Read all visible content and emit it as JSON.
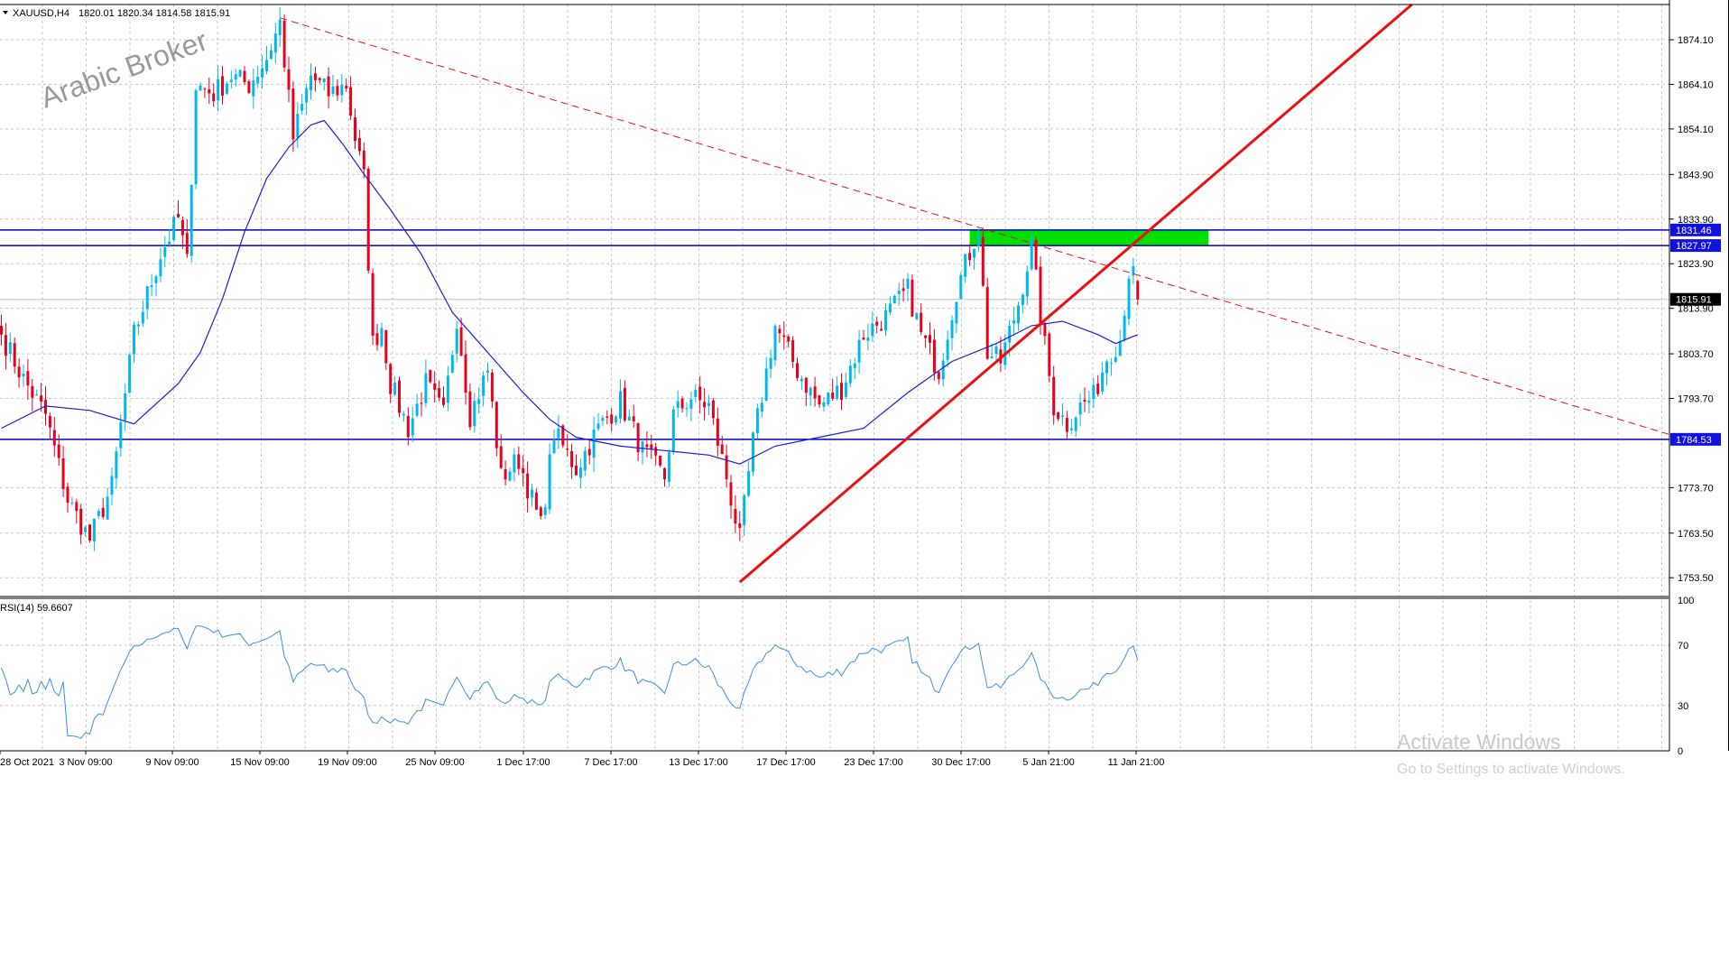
{
  "header": {
    "symbol": "XAUUSD,H4",
    "ohlc": "1820.01 1820.34 1814.58 1815.91",
    "menu_icon": "triangle-down-icon"
  },
  "watermark": {
    "text": "Arabic Broker"
  },
  "activation": {
    "title": "Activate Windows",
    "subtitle": "Go to Settings to activate Windows."
  },
  "colors": {
    "bull": "#00b8f0",
    "bear": "#e8001c",
    "ma": "#1c1cdc",
    "hline": "#0000c8",
    "trend": "#e81010",
    "zone": "#00e000",
    "rsi": "#3a8ee6",
    "grid": "#c8c8c8",
    "price_tag_bg": "#000000",
    "level_tag_bg": "#1010e0"
  },
  "chart_data": [
    {
      "type": "candlestick",
      "title": "XAUUSD,H4",
      "x_tick_labels": [
        "28 Oct 2021",
        "3 Nov 09:00",
        "9 Nov 09:00",
        "15 Nov 09:00",
        "19 Nov 09:00",
        "25 Nov 09:00",
        "1 Dec 17:00",
        "7 Dec 17:00",
        "13 Dec 17:00",
        "17 Dec 17:00",
        "23 Dec 17:00",
        "30 Dec 17:00",
        "5 Jan 21:00",
        "11 Jan 21:00"
      ],
      "y_tick_labels": [
        "1874.10",
        "1864.10",
        "1854.10",
        "1843.90",
        "1833.90",
        "1823.90",
        "1813.90",
        "1803.70",
        "1793.70",
        "1773.70",
        "1763.50",
        "1753.50"
      ],
      "ylim": [
        1749.5,
        1882.0
      ],
      "grid": true,
      "current_price": "1815.91",
      "horizontal_levels": [
        "1831.46",
        "1827.97",
        "1784.53"
      ],
      "anchor_points": [
        {
          "bar": 0,
          "close": 1808
        },
        {
          "bar": 5,
          "close": 1798
        },
        {
          "bar": 10,
          "close": 1790
        },
        {
          "bar": 15,
          "close": 1771
        },
        {
          "bar": 20,
          "close": 1762
        },
        {
          "bar": 25,
          "close": 1774
        },
        {
          "bar": 30,
          "close": 1808
        },
        {
          "bar": 36,
          "close": 1826
        },
        {
          "bar": 40,
          "close": 1834
        },
        {
          "bar": 42,
          "close": 1824
        },
        {
          "bar": 44,
          "close": 1864
        },
        {
          "bar": 48,
          "close": 1862
        },
        {
          "bar": 52,
          "close": 1866
        },
        {
          "bar": 56,
          "close": 1864
        },
        {
          "bar": 60,
          "close": 1870
        },
        {
          "bar": 63,
          "close": 1878
        },
        {
          "bar": 66,
          "close": 1852
        },
        {
          "bar": 70,
          "close": 1866
        },
        {
          "bar": 74,
          "close": 1862
        },
        {
          "bar": 78,
          "close": 1864
        },
        {
          "bar": 80,
          "close": 1852
        },
        {
          "bar": 82,
          "close": 1843
        },
        {
          "bar": 84,
          "close": 1806
        },
        {
          "bar": 86,
          "close": 1810
        },
        {
          "bar": 88,
          "close": 1797
        },
        {
          "bar": 92,
          "close": 1787
        },
        {
          "bar": 96,
          "close": 1797
        },
        {
          "bar": 100,
          "close": 1790
        },
        {
          "bar": 103,
          "close": 1812
        },
        {
          "bar": 106,
          "close": 1790
        },
        {
          "bar": 110,
          "close": 1800
        },
        {
          "bar": 113,
          "close": 1776
        },
        {
          "bar": 117,
          "close": 1780
        },
        {
          "bar": 122,
          "close": 1765
        },
        {
          "bar": 125,
          "close": 1786
        },
        {
          "bar": 130,
          "close": 1778
        },
        {
          "bar": 135,
          "close": 1787
        },
        {
          "bar": 140,
          "close": 1793
        },
        {
          "bar": 145,
          "close": 1782
        },
        {
          "bar": 150,
          "close": 1776
        },
        {
          "bar": 152,
          "close": 1790
        },
        {
          "bar": 156,
          "close": 1794
        },
        {
          "bar": 160,
          "close": 1792
        },
        {
          "bar": 164,
          "close": 1776
        },
        {
          "bar": 167,
          "close": 1762
        },
        {
          "bar": 170,
          "close": 1784
        },
        {
          "bar": 175,
          "close": 1810
        },
        {
          "bar": 180,
          "close": 1800
        },
        {
          "bar": 185,
          "close": 1792
        },
        {
          "bar": 190,
          "close": 1796
        },
        {
          "bar": 195,
          "close": 1808
        },
        {
          "bar": 200,
          "close": 1812
        },
        {
          "bar": 205,
          "close": 1818
        },
        {
          "bar": 208,
          "close": 1808
        },
        {
          "bar": 212,
          "close": 1800
        },
        {
          "bar": 216,
          "close": 1818
        },
        {
          "bar": 221,
          "close": 1832
        },
        {
          "bar": 223,
          "close": 1804
        },
        {
          "bar": 226,
          "close": 1802
        },
        {
          "bar": 230,
          "close": 1815
        },
        {
          "bar": 233,
          "close": 1828
        },
        {
          "bar": 235,
          "close": 1812
        },
        {
          "bar": 238,
          "close": 1792
        },
        {
          "bar": 241,
          "close": 1788
        },
        {
          "bar": 244,
          "close": 1792
        },
        {
          "bar": 247,
          "close": 1794
        },
        {
          "bar": 250,
          "close": 1803
        },
        {
          "bar": 253,
          "close": 1807
        },
        {
          "bar": 255,
          "close": 1822
        },
        {
          "bar": 256,
          "close": 1821
        },
        {
          "bar": 257,
          "close": 1815.91
        }
      ],
      "moving_average": [
        {
          "bar": 0,
          "value": 1787
        },
        {
          "bar": 10,
          "value": 1792
        },
        {
          "bar": 20,
          "value": 1791
        },
        {
          "bar": 30,
          "value": 1788
        },
        {
          "bar": 40,
          "value": 1797
        },
        {
          "bar": 45,
          "value": 1804
        },
        {
          "bar": 50,
          "value": 1816
        },
        {
          "bar": 55,
          "value": 1831
        },
        {
          "bar": 60,
          "value": 1843
        },
        {
          "bar": 65,
          "value": 1850
        },
        {
          "bar": 70,
          "value": 1855
        },
        {
          "bar": 73,
          "value": 1856
        },
        {
          "bar": 77,
          "value": 1851
        },
        {
          "bar": 82,
          "value": 1844
        },
        {
          "bar": 88,
          "value": 1836
        },
        {
          "bar": 95,
          "value": 1826
        },
        {
          "bar": 102,
          "value": 1813
        },
        {
          "bar": 110,
          "value": 1804
        },
        {
          "bar": 118,
          "value": 1795
        },
        {
          "bar": 124,
          "value": 1789
        },
        {
          "bar": 130,
          "value": 1785
        },
        {
          "bar": 140,
          "value": 1783
        },
        {
          "bar": 150,
          "value": 1782
        },
        {
          "bar": 160,
          "value": 1781
        },
        {
          "bar": 167,
          "value": 1779
        },
        {
          "bar": 175,
          "value": 1783
        },
        {
          "bar": 185,
          "value": 1785
        },
        {
          "bar": 195,
          "value": 1787
        },
        {
          "bar": 205,
          "value": 1795
        },
        {
          "bar": 215,
          "value": 1802
        },
        {
          "bar": 225,
          "value": 1806
        },
        {
          "bar": 233,
          "value": 1810
        },
        {
          "bar": 240,
          "value": 1811
        },
        {
          "bar": 248,
          "value": 1808
        },
        {
          "bar": 252,
          "value": 1806
        },
        {
          "bar": 257,
          "value": 1808
        }
      ],
      "trendlines": [
        {
          "style": "dashed",
          "from": {
            "bar": 63,
            "price": 1879
          },
          "to": {
            "bar": 377,
            "price": 1785.7
          }
        },
        {
          "style": "solid",
          "from": {
            "bar": 167,
            "price": 1752.5
          },
          "to": {
            "bar": 319,
            "price": 1882
          }
        }
      ],
      "zone": {
        "from_bar": 219,
        "to_bar": 273,
        "low": 1827.97,
        "high": 1831.46
      }
    },
    {
      "type": "line",
      "title": "RSI(14) 59.6607",
      "ylim": [
        0,
        100
      ],
      "y_tick_labels": [
        "100",
        "70",
        "30",
        "0"
      ],
      "values_note_free": true
    }
  ]
}
